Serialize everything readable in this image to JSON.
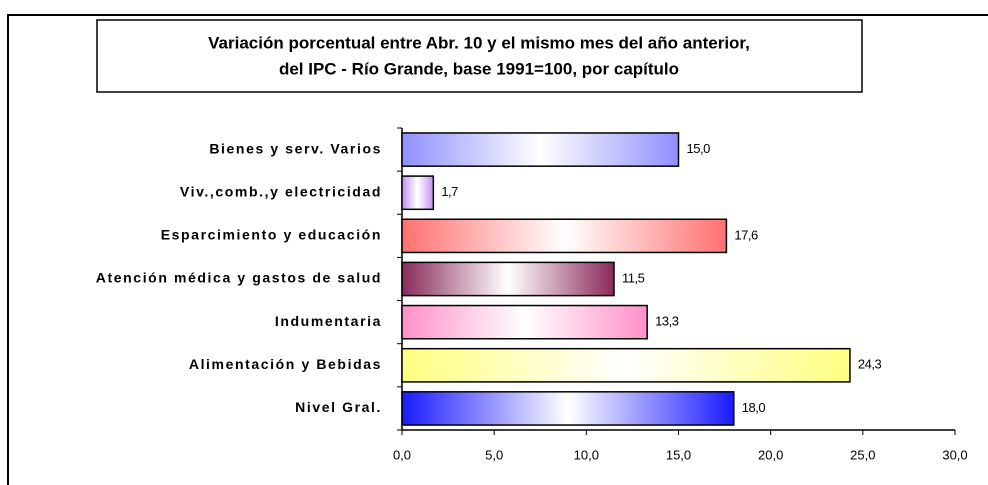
{
  "chart_data": {
    "type": "bar",
    "orientation": "horizontal",
    "title": [
      "Variación porcentual entre Abr. 10 y el mismo  mes del año anterior,",
      "del IPC - Río Grande, base 1991=100, por capítulo"
    ],
    "categories": [
      "Bienes y serv. Varios",
      "Viv.,comb.,y electricidad",
      "Esparcimiento y educación",
      "Atención médica y gastos de salud",
      "Indumentaria",
      "Alimentación y Bebidas",
      "Nivel Gral."
    ],
    "values": [
      15.0,
      1.7,
      17.6,
      11.5,
      13.3,
      24.3,
      18.0
    ],
    "value_labels": [
      "15,0",
      "1,7",
      "17,6",
      "11,5",
      "13,3",
      "24,3",
      "18,0"
    ],
    "colors": [
      "#8f8fff",
      "#c090f0",
      "#ff7070",
      "#8a2a5a",
      "#ff90c8",
      "#ffff80",
      "#1a1aff"
    ],
    "xlim": [
      0,
      30
    ],
    "xticks": [
      {
        "value": 0,
        "label": "0,0"
      },
      {
        "value": 5,
        "label": "5,0"
      },
      {
        "value": 10,
        "label": "10,0"
      },
      {
        "value": 15,
        "label": "15,0"
      },
      {
        "value": 20,
        "label": "20,0"
      },
      {
        "value": 25,
        "label": "25,0"
      },
      {
        "value": 30,
        "label": "30,0"
      }
    ]
  }
}
